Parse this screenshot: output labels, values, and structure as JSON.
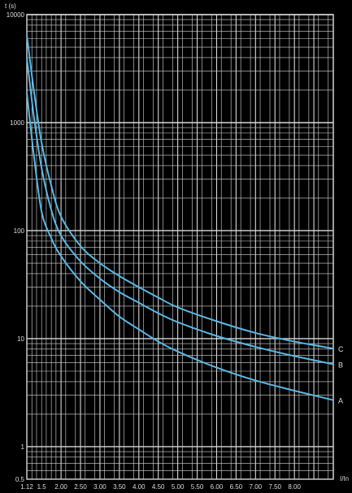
{
  "chart_data": {
    "type": "line",
    "ylabel": "t (s)",
    "xlabel": "I/In",
    "y_scale": "log",
    "ylim": [
      0.5,
      10000
    ],
    "xlim": [
      1.12,
      9.0
    ],
    "grid": true,
    "x_ticks": [
      "1.12",
      "1.5",
      "2.00",
      "2.50",
      "3.00",
      "3.50",
      "4.00",
      "4.50",
      "5.00",
      "5.50",
      "6.00",
      "6.50",
      "7.00",
      "7.50",
      "8.00"
    ],
    "x_tick_values": [
      1.12,
      1.5,
      2.0,
      2.5,
      3.0,
      3.5,
      4.0,
      4.5,
      5.0,
      5.5,
      6.0,
      6.5,
      7.0,
      7.5,
      8.0
    ],
    "y_ticks": [
      "10000",
      "1000",
      "100",
      "10",
      "1",
      "0.5"
    ],
    "y_tick_values": [
      10000,
      1000,
      100,
      10,
      1,
      0.5
    ],
    "colors": {
      "background": "#000000",
      "grid": "#d8d8d8",
      "curve": "#5ab8e4",
      "text": "#dddddd"
    },
    "series": [
      {
        "name": "C",
        "x": [
          1.12,
          1.3,
          1.5,
          1.75,
          2.0,
          2.5,
          3.0,
          3.5,
          4.0,
          4.5,
          5.0,
          6.0,
          7.0,
          8.0,
          9.0
        ],
        "y": [
          6500,
          2000,
          650,
          260,
          135,
          72,
          50,
          38,
          30,
          24,
          19.5,
          14.5,
          11.3,
          9.4,
          8.1
        ]
      },
      {
        "name": "B",
        "x": [
          1.12,
          1.3,
          1.5,
          1.75,
          2.0,
          2.5,
          3.0,
          3.5,
          4.0,
          4.5,
          5.0,
          6.0,
          7.0,
          8.0,
          9.0
        ],
        "y": [
          4000,
          1150,
          380,
          155,
          90,
          52,
          36,
          27,
          21.5,
          17.2,
          14.2,
          10.6,
          8.4,
          6.9,
          5.8
        ]
      },
      {
        "name": "A",
        "x": [
          1.12,
          1.3,
          1.5,
          1.75,
          2.0,
          2.5,
          3.0,
          3.5,
          4.0,
          4.5,
          5.0,
          6.0,
          7.0,
          8.0,
          9.0
        ],
        "y": [
          1900,
          500,
          150,
          85,
          58,
          34,
          23,
          16,
          12.2,
          9.4,
          7.6,
          5.4,
          4.1,
          3.3,
          2.7
        ]
      }
    ]
  }
}
